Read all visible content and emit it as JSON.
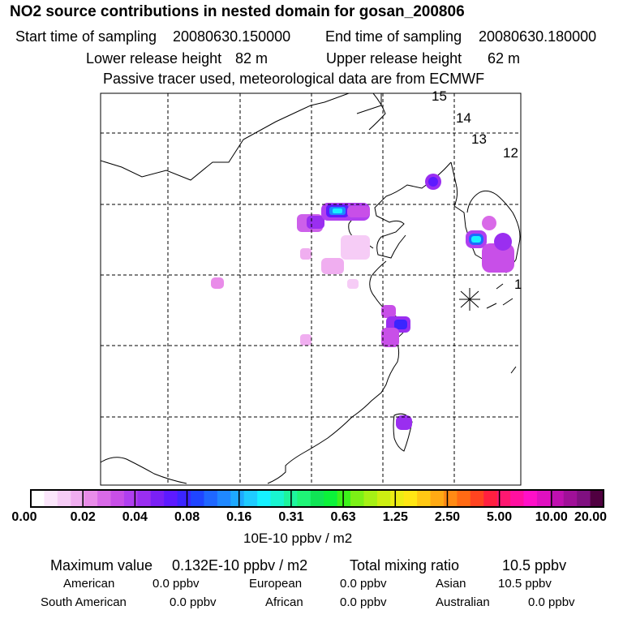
{
  "header": {
    "title": "NO2 source contributions in nested domain for gosan_200806",
    "start_label": "Start time of sampling",
    "start_value": "20080630.150000",
    "end_label": "End time of sampling",
    "end_value": "20080630.180000",
    "lower_label": "Lower release height",
    "lower_value": "82 m",
    "upper_label": "Upper release height",
    "upper_value": "62 m",
    "note": "Passive tracer used, meteorological data are from ECMWF"
  },
  "map": {
    "time_labels": [
      "15",
      "14",
      "13",
      "12",
      "1"
    ],
    "receptor_marker": "asterisk-marker"
  },
  "colorbar": {
    "colors": [
      "#ffffff",
      "#fbe6fb",
      "#f6ccf6",
      "#f0aef0",
      "#e98ce9",
      "#d96ae8",
      "#c84fe8",
      "#b03ff0",
      "#9a2ef0",
      "#7a20f5",
      "#5d1aff",
      "#3b25ff",
      "#1f45ff",
      "#1f67ff",
      "#1f88ff",
      "#1ea9ff",
      "#1fcbff",
      "#16f0ff",
      "#19f5d0",
      "#1ef59d",
      "#1ff577",
      "#10e555",
      "#0cf23a",
      "#3cf21a",
      "#7cf016",
      "#a6f015",
      "#cdee12",
      "#eded14",
      "#ffe614",
      "#ffc814",
      "#ffaa14",
      "#ff8a14",
      "#ff6a14",
      "#ff4420",
      "#ff2040",
      "#ff1870",
      "#ff10a0",
      "#ff10c8",
      "#e010c0",
      "#c010b0",
      "#a01098",
      "#801080",
      "#500040"
    ],
    "tick_labels": [
      "0.00",
      "0.02",
      "0.04",
      "0.08",
      "0.16",
      "0.31",
      "0.63",
      "1.25",
      "2.50",
      "5.00",
      "10.00",
      "20.00"
    ],
    "units": "10E-10 ppbv / m2"
  },
  "stats": {
    "max_label": "Maximum value",
    "max_value": "0.132E-10 ppbv / m2",
    "total_label": "Total mixing ratio",
    "total_value": "10.5 ppbv",
    "american_label": "American",
    "american_value": "0.0 ppbv",
    "european_label": "European",
    "european_value": "0.0 ppbv",
    "asian_label": "Asian",
    "asian_value": "10.5 ppbv",
    "south_american_label": "South American",
    "south_american_value": "0.0 ppbv",
    "african_label": "African",
    "african_value": "0.0 ppbv",
    "australian_label": "Australian",
    "australian_value": "0.0 ppbv"
  }
}
